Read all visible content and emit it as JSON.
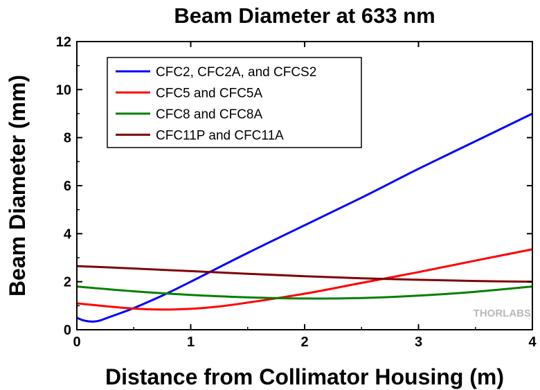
{
  "chart_data": {
    "type": "line",
    "title": "Beam Diameter at 633 nm",
    "xlabel": "Distance from Collimator Housing (m)",
    "ylabel": "Beam Diameter (mm)",
    "xlim": [
      0,
      4
    ],
    "ylim": [
      0,
      12
    ],
    "x_ticks": [
      "0",
      "1",
      "2",
      "3",
      "4"
    ],
    "y_ticks": [
      "0",
      "2",
      "4",
      "6",
      "8",
      "10",
      "12"
    ],
    "grid": false,
    "legend_position": "top-left",
    "series": [
      {
        "name": "CFC2, CFC2A, and CFCS2",
        "color": "#0000ff",
        "points": [
          [
            0,
            0.5
          ],
          [
            0.05,
            0.4
          ],
          [
            0.1,
            0.35
          ],
          [
            0.15,
            0.34
          ],
          [
            0.2,
            0.38
          ],
          [
            0.3,
            0.55
          ],
          [
            0.4,
            0.72
          ],
          [
            0.5,
            0.9
          ],
          [
            0.75,
            1.42
          ],
          [
            1.0,
            2.0
          ],
          [
            1.5,
            3.2
          ],
          [
            2.0,
            4.35
          ],
          [
            2.5,
            5.5
          ],
          [
            3.0,
            6.7
          ],
          [
            3.5,
            7.85
          ],
          [
            4.0,
            9.0
          ]
        ]
      },
      {
        "name": "CFC5 and CFC5A",
        "color": "#ff0000",
        "points": [
          [
            0,
            1.1
          ],
          [
            0.25,
            0.98
          ],
          [
            0.5,
            0.88
          ],
          [
            0.75,
            0.84
          ],
          [
            1.0,
            0.87
          ],
          [
            1.25,
            0.97
          ],
          [
            1.5,
            1.13
          ],
          [
            2.0,
            1.5
          ],
          [
            2.5,
            1.95
          ],
          [
            3.0,
            2.4
          ],
          [
            3.5,
            2.88
          ],
          [
            4.0,
            3.35
          ]
        ]
      },
      {
        "name": "CFC8 and CFC8A",
        "color": "#008000",
        "points": [
          [
            0,
            1.8
          ],
          [
            0.5,
            1.6
          ],
          [
            1.0,
            1.45
          ],
          [
            1.5,
            1.35
          ],
          [
            2.0,
            1.3
          ],
          [
            2.5,
            1.32
          ],
          [
            3.0,
            1.42
          ],
          [
            3.5,
            1.58
          ],
          [
            4.0,
            1.8
          ]
        ]
      },
      {
        "name": "CFC11P and CFC11A",
        "color": "#800000",
        "points": [
          [
            0,
            2.65
          ],
          [
            0.5,
            2.55
          ],
          [
            1.0,
            2.44
          ],
          [
            1.5,
            2.33
          ],
          [
            2.0,
            2.23
          ],
          [
            2.5,
            2.14
          ],
          [
            3.0,
            2.08
          ],
          [
            3.5,
            2.03
          ],
          [
            4.0,
            2.0
          ]
        ]
      }
    ]
  },
  "watermark": "THORLABS"
}
